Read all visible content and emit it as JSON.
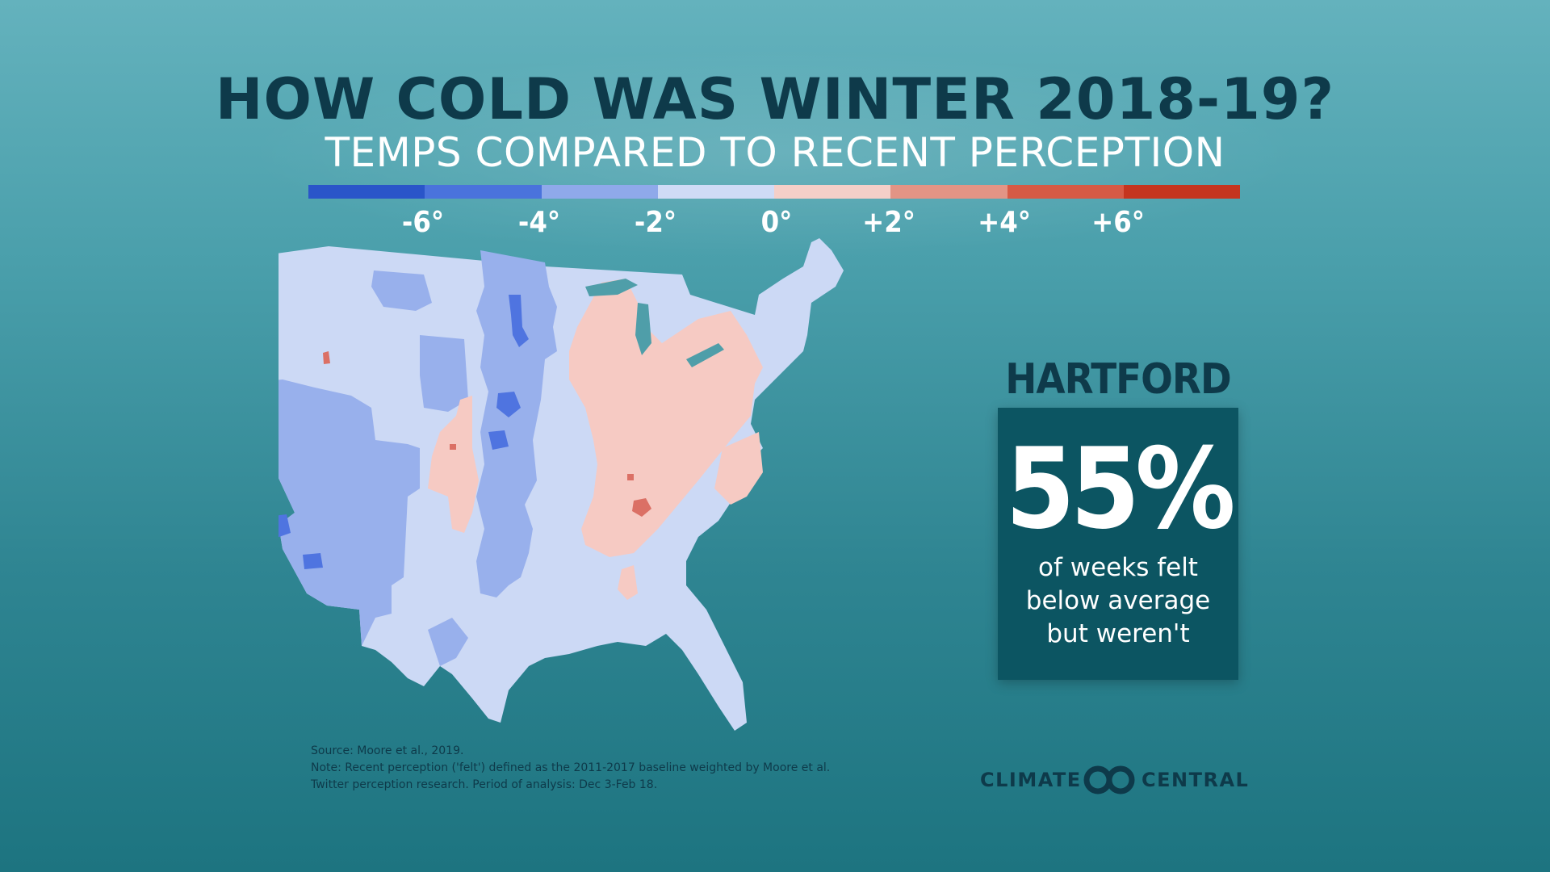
{
  "title": "HOW COLD WAS WINTER 2018-19?",
  "subtitle": "TEMPS COMPARED TO RECENT PERCEPTION",
  "legend": {
    "colors": [
      "#2a55c9",
      "#4a73dc",
      "#8fa9ea",
      "#cfdbf6",
      "#f4cfc8",
      "#e39485",
      "#d65a45",
      "#c5351f"
    ],
    "labels": [
      "-6°",
      "-4°",
      "-2°",
      "0°",
      "+2°",
      "+4°",
      "+6°"
    ]
  },
  "map_colors": {
    "base": "#ccd9f5",
    "minus2": "#98b0ec",
    "minus4": "#4f74e0",
    "plus2": "#f6cac3",
    "plus4": "#db7065"
  },
  "callout": {
    "city": "HARTFORD",
    "value": "55%",
    "caption_lines": [
      "of weeks felt",
      "below average",
      "but weren't"
    ]
  },
  "source_lines": [
    "Source: Moore et al., 2019.",
    "Note: Recent perception ('felt') defined as the 2011-2017  baseline weighted by Moore et al.",
    "Twitter perception research. Period of analysis: Dec 3-Feb 18."
  ],
  "logo": {
    "left": "CLIMATE",
    "right": "CENTRAL"
  }
}
